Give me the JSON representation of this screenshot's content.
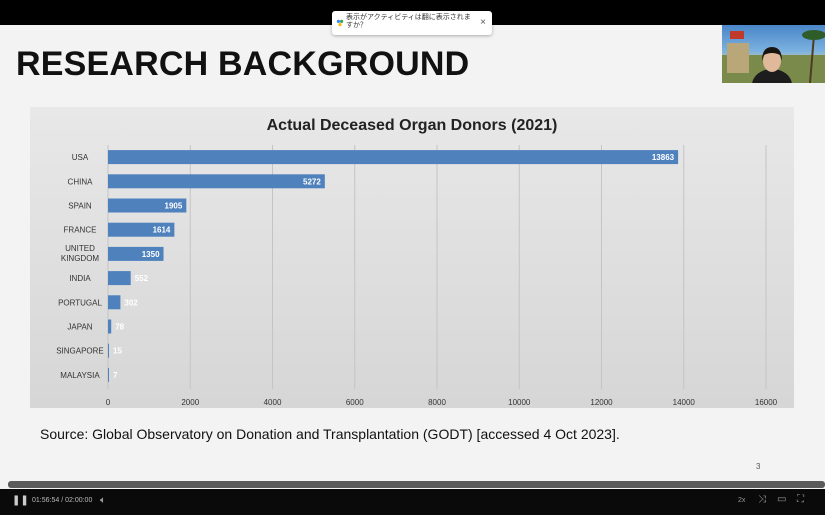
{
  "slide": {
    "title": "RESEARCH BACKGROUND",
    "source": "Source: Global Observatory on Donation and Transplantation (GODT) [accessed 4 Oct 2023].",
    "page_number": "3"
  },
  "notice": {
    "text": "表示がアクティビティは翻に表示されますか？",
    "close_label": "×"
  },
  "player": {
    "time": "01:56:54 / 02:00:00",
    "speed": "2x"
  },
  "chart_data": {
    "type": "bar",
    "orientation": "horizontal",
    "title": "Actual Deceased Organ Donors (2021)",
    "categories": [
      "USA",
      "CHINA",
      "SPAIN",
      "FRANCE",
      "UNITED KINGDOM",
      "INDIA",
      "PORTUGAL",
      "JAPAN",
      "SINGAPORE",
      "MALAYSIA"
    ],
    "values": [
      13863,
      5272,
      1905,
      1614,
      1350,
      552,
      302,
      78,
      15,
      7
    ],
    "xlim": [
      0,
      16000
    ],
    "xticks": [
      0,
      2000,
      4000,
      6000,
      8000,
      10000,
      12000,
      14000,
      16000
    ],
    "grid": "vertical",
    "bar_color": "#4f81bd"
  }
}
